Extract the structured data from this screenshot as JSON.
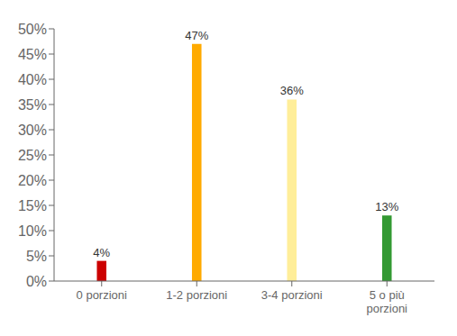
{
  "chart_data": {
    "type": "bar",
    "categories": [
      "0 porzioni",
      "1-2 porzioni",
      "3-4 porzioni",
      "5 o più\nporzioni"
    ],
    "values": [
      4,
      47,
      36,
      13
    ],
    "value_labels": [
      "4%",
      "47%",
      "36%",
      "13%"
    ],
    "data_labels": true,
    "colors": [
      "#cc0000",
      "#ffaa00",
      "#ffee99",
      "#339933"
    ],
    "ylim": [
      0,
      50
    ],
    "yticks": [
      {
        "value": 0,
        "label": "0%"
      },
      {
        "value": 5,
        "label": "5%"
      },
      {
        "value": 10,
        "label": "10%"
      },
      {
        "value": 15,
        "label": "15%"
      },
      {
        "value": 20,
        "label": "20%"
      },
      {
        "value": 25,
        "label": "25%"
      },
      {
        "value": 30,
        "label": "30%"
      },
      {
        "value": 35,
        "label": "35%"
      },
      {
        "value": 40,
        "label": "40%"
      },
      {
        "value": 45,
        "label": "45%"
      },
      {
        "value": 50,
        "label": "50%"
      }
    ],
    "grid": false
  }
}
